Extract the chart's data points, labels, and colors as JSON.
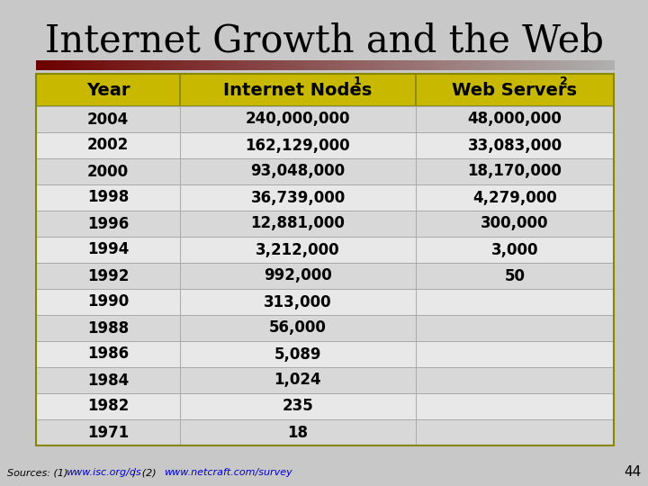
{
  "title": "Internet Growth and the Web",
  "background_color": "#c8c8c8",
  "header_bg": "#c8b800",
  "header_text_color": "#000000",
  "row_colors": [
    "#d8d8d8",
    "#e8e8e8"
  ],
  "rows": [
    [
      "2004",
      "240,000,000",
      "48,000,000"
    ],
    [
      "2002",
      "162,129,000",
      "33,083,000"
    ],
    [
      "2000",
      "93,048,000",
      "18,170,000"
    ],
    [
      "1998",
      "36,739,000",
      "4,279,000"
    ],
    [
      "1996",
      "12,881,000",
      "300,000"
    ],
    [
      "1994",
      "3,212,000",
      "3,000"
    ],
    [
      "1992",
      "992,000",
      "50"
    ],
    [
      "1990",
      "313,000",
      ""
    ],
    [
      "1988",
      "56,000",
      ""
    ],
    [
      "1986",
      "5,089",
      ""
    ],
    [
      "1984",
      "1,024",
      ""
    ],
    [
      "1982",
      "235",
      ""
    ],
    [
      "1971",
      "18",
      ""
    ]
  ],
  "slide_number": "44",
  "bar_left_color": "#6b0000",
  "bar_right_color": "#b0b0b0"
}
